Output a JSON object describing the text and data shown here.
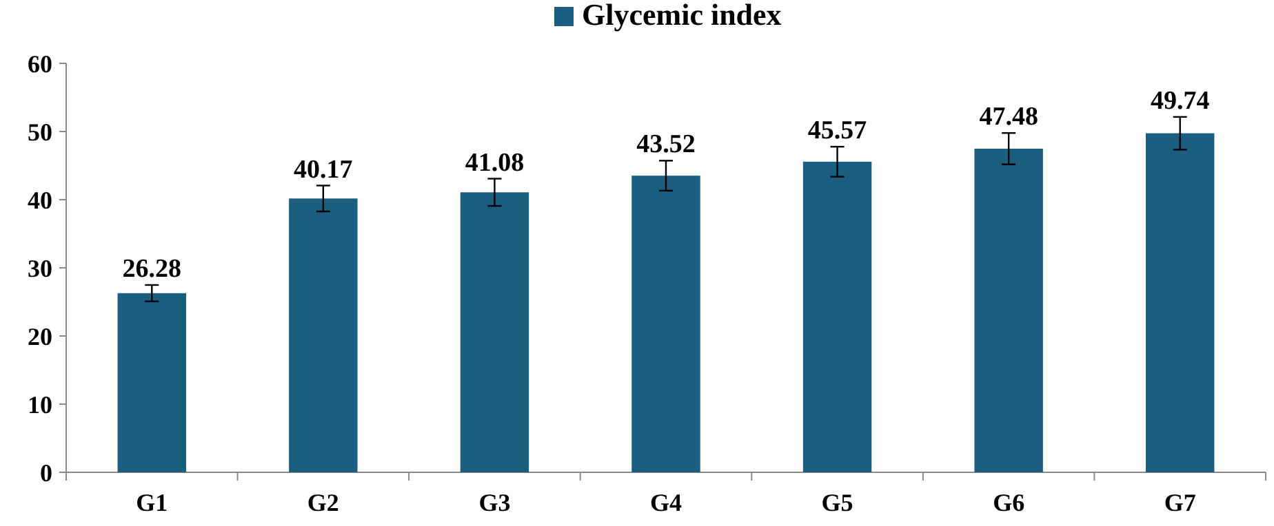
{
  "chart_data": {
    "type": "bar",
    "categories": [
      "G1",
      "G2",
      "G3",
      "G4",
      "G5",
      "G6",
      "G7"
    ],
    "series": [
      {
        "name": "Glycemic index",
        "color": "#1b5e80",
        "values": [
          26.28,
          40.17,
          41.08,
          43.52,
          45.57,
          47.48,
          49.74
        ],
        "errors": [
          1.2,
          1.9,
          2.0,
          2.2,
          2.2,
          2.3,
          2.4
        ]
      }
    ],
    "ylim": [
      0,
      60
    ],
    "yticks": [
      0,
      10,
      20,
      30,
      40,
      50,
      60
    ],
    "data_labels": true,
    "legend": "top",
    "grid": false
  }
}
